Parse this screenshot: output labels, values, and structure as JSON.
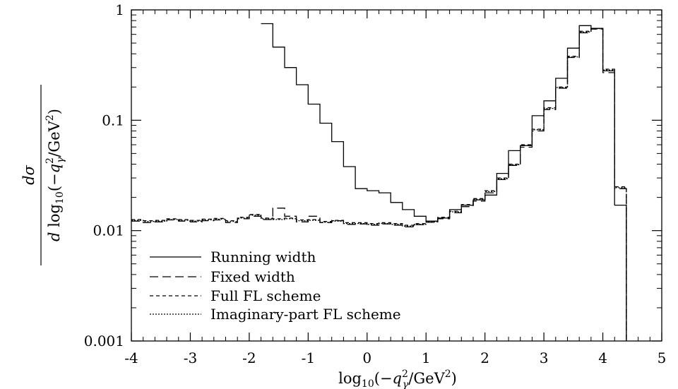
{
  "chart_data": {
    "type": "line",
    "step": true,
    "xlabel": "log10(−q²γ/GeV²)",
    "ylabel": "dσ / d log10(−q²γ/GeV²)",
    "xlim": [
      -4,
      5
    ],
    "ylim": [
      0.001,
      1
    ],
    "yscale": "log",
    "x_ticks": [
      "-4",
      "-3",
      "-2",
      "-1",
      "0",
      "1",
      "2",
      "3",
      "4",
      "5"
    ],
    "y_ticks": [
      "0.001",
      "0.01",
      "0.1",
      "1"
    ],
    "legend_position": "bottom-left",
    "bin_edges": [
      -4.0,
      -3.8,
      -3.6,
      -3.4,
      -3.2,
      -3.0,
      -2.8,
      -2.6,
      -2.4,
      -2.2,
      -2.0,
      -1.8,
      -1.6,
      -1.4,
      -1.2,
      -1.0,
      -0.8,
      -0.6,
      -0.4,
      -0.2,
      0.0,
      0.2,
      0.4,
      0.6,
      0.8,
      1.0,
      1.2,
      1.4,
      1.6,
      1.8,
      2.0,
      2.2,
      2.4,
      2.6,
      2.8,
      3.0,
      3.2,
      3.4,
      3.6,
      3.8,
      4.0,
      4.2,
      4.4
    ],
    "series": [
      {
        "name": "Running width",
        "dash": "",
        "values": [
          null,
          null,
          null,
          null,
          null,
          null,
          null,
          null,
          null,
          null,
          null,
          0.75,
          0.46,
          0.3,
          0.21,
          0.14,
          0.094,
          0.064,
          0.038,
          0.024,
          0.023,
          0.022,
          0.018,
          0.0155,
          0.0135,
          0.0122,
          0.013,
          0.0155,
          0.017,
          0.019,
          0.021,
          0.033,
          0.053,
          0.059,
          0.11,
          0.15,
          0.24,
          0.45,
          0.72,
          0.68,
          0.28,
          0.017
        ]
      },
      {
        "name": "Fixed width",
        "dash": "12,6",
        "values": [
          0.0122,
          0.0118,
          0.012,
          0.0125,
          0.0122,
          0.012,
          0.0123,
          0.0125,
          0.0118,
          0.0128,
          0.0135,
          0.0126,
          0.016,
          0.0135,
          0.012,
          0.0135,
          0.0118,
          0.0123,
          0.0114,
          0.0115,
          0.0112,
          0.0115,
          0.0112,
          0.0108,
          0.0113,
          0.0119,
          0.0128,
          0.0145,
          0.0165,
          0.0185,
          0.022,
          0.029,
          0.039,
          0.057,
          0.08,
          0.125,
          0.195,
          0.37,
          0.62,
          0.67,
          0.27,
          0.024
        ]
      },
      {
        "name": "Full FL scheme",
        "dash": "5,4",
        "values": [
          0.0126,
          0.0123,
          0.0124,
          0.0128,
          0.0126,
          0.0124,
          0.0127,
          0.0129,
          0.0123,
          0.0132,
          0.014,
          0.013,
          0.0128,
          0.013,
          0.0125,
          0.0126,
          0.0121,
          0.0124,
          0.0118,
          0.0118,
          0.0116,
          0.0118,
          0.0116,
          0.0112,
          0.0116,
          0.0122,
          0.0132,
          0.015,
          0.0172,
          0.0195,
          0.023,
          0.03,
          0.04,
          0.06,
          0.083,
          0.13,
          0.2,
          0.38,
          0.64,
          0.68,
          0.29,
          0.025
        ]
      },
      {
        "name": "Imaginary-part FL scheme",
        "dash": "2,2",
        "values": [
          0.0124,
          0.0121,
          0.0122,
          0.0126,
          0.0124,
          0.0122,
          0.0125,
          0.0127,
          0.0121,
          0.013,
          0.0138,
          0.0128,
          0.0126,
          0.0128,
          0.0123,
          0.0124,
          0.0119,
          0.0122,
          0.0116,
          0.0116,
          0.0114,
          0.0116,
          0.0114,
          0.011,
          0.0114,
          0.012,
          0.013,
          0.0148,
          0.017,
          0.0192,
          0.0226,
          0.0295,
          0.0395,
          0.059,
          0.082,
          0.128,
          0.198,
          0.375,
          0.63,
          0.675,
          0.285,
          0.0245
        ]
      }
    ]
  }
}
